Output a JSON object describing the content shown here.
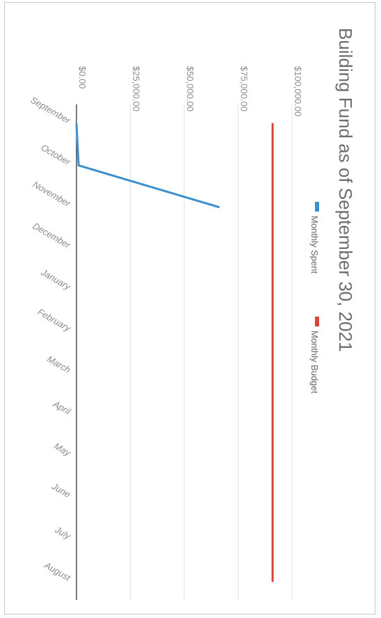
{
  "chart_data": {
    "type": "line",
    "title": "Building Fund as of September 30, 2021",
    "categories": [
      "September",
      "October",
      "November",
      "December",
      "January",
      "February",
      "March",
      "April",
      "May",
      "June",
      "July",
      "August"
    ],
    "series": [
      {
        "name": "Monthly Spent",
        "color": "#3b8fcf",
        "values": [
          0,
          1000,
          66000,
          null,
          null,
          null,
          null,
          null,
          null,
          null,
          null,
          null
        ]
      },
      {
        "name": "Monthly Budget",
        "color": "#d9453a",
        "values": [
          91000,
          91000,
          91000,
          91000,
          91000,
          91000,
          91000,
          91000,
          91000,
          91000,
          91000,
          91000
        ]
      }
    ],
    "y_ticks": [
      "$0.00",
      "$25,000.00",
      "$50,000.00",
      "$75,000.00",
      "$100,000.00"
    ],
    "y_tick_values": [
      0,
      25000,
      50000,
      75000,
      100000
    ],
    "ylim": [
      0,
      100000
    ],
    "legend": "top",
    "grid": true,
    "orientation": "rotated 90 degrees clockwise"
  }
}
